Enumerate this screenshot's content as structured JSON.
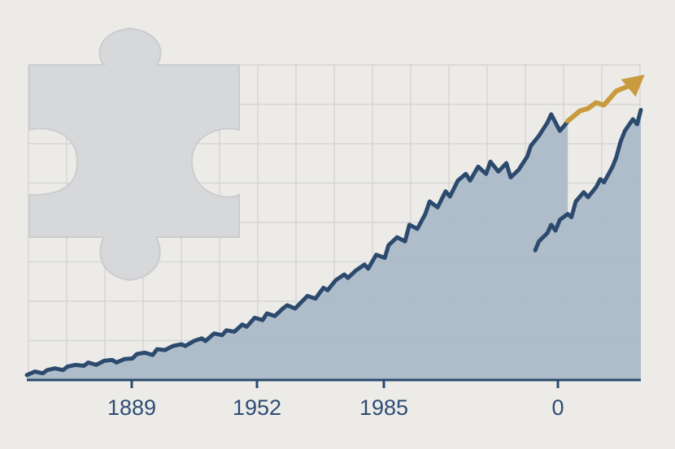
{
  "colors": {
    "background": "#ecebe8",
    "grid": "#d6d6d6",
    "area_fill": "#a9b8c8",
    "line": "#2c4a6e",
    "arrow": "#c99a3e",
    "axis": "#2c4a6e",
    "puzzle": "#d7d8da",
    "tick_text": "#2f4c74"
  },
  "icons": {
    "decoration": "puzzle-piece-icon",
    "trend": "up-arrow-icon"
  },
  "chart_data": {
    "type": "area",
    "title": "",
    "xlabel": "",
    "ylabel": "",
    "grid": true,
    "legend": "none",
    "x_ticks": [
      "1889",
      "1952",
      "1985",
      "0"
    ],
    "xlim": [
      0,
      100
    ],
    "ylim": [
      0,
      100
    ],
    "series": [
      {
        "x": [
          0,
          1.3,
          2.6,
          3.3,
          4.6,
          5.9,
          6.6,
          7.9,
          9.3,
          10,
          11.3,
          12.6,
          13.9,
          14.6,
          15.9,
          17.2,
          17.9,
          19.2,
          20.5,
          21.2,
          22.5,
          23.8,
          25.2,
          25.8,
          27.2,
          28.5,
          29.1,
          30.5,
          31.8,
          32.5,
          33.8,
          35.1,
          35.8,
          37.1,
          38.4,
          39.1,
          40.4,
          41.7,
          42.4,
          43.7,
          45,
          45.7,
          47,
          48.3,
          49,
          50.3,
          51.7,
          52.3,
          53.6,
          55,
          55.6,
          56.9,
          58.3,
          58.9,
          60.3,
          61.6,
          62.3,
          63.6,
          64.9,
          65.6,
          66.9,
          68.2,
          68.9,
          70.2,
          71.5,
          72.2,
          73.5,
          74.8,
          75.5,
          76.8,
          78.1,
          78.8,
          80.1,
          81.5,
          82.1,
          83.4,
          84.8,
          85.4,
          86.8,
          88.1
        ],
        "y": [
          1.7,
          2.9,
          2.3,
          3.4,
          4,
          3.4,
          4.6,
          5.2,
          4.9,
          6,
          5.2,
          6.6,
          6.9,
          6,
          7.2,
          7.4,
          8.9,
          9.4,
          8.6,
          10.6,
          10.3,
          11.7,
          12.3,
          11.7,
          13.4,
          14.3,
          13.4,
          16,
          15.4,
          17.1,
          16.6,
          19.1,
          18.3,
          21.4,
          20.6,
          22.9,
          22,
          24.6,
          25.7,
          24.6,
          27.4,
          28.9,
          28,
          31.7,
          30.9,
          34.3,
          36.3,
          35.1,
          37.7,
          39.7,
          38.3,
          43.1,
          42,
          46.3,
          49.1,
          47.7,
          53.4,
          52,
          57.1,
          61.4,
          59.4,
          64.9,
          63.1,
          68.6,
          70.9,
          68.6,
          73.4,
          70.9,
          75.1,
          71.7,
          74.6,
          69.7,
          72.3,
          76.9,
          80.6,
          84,
          88.6,
          91.4,
          85.7,
          88.9
        ]
      },
      {
        "x": [
          82.8,
          83.4,
          84.8,
          85.4,
          86.1,
          86.8,
          88.1,
          88.7,
          89.4,
          90.7,
          91.4,
          92.7,
          93.4,
          94,
          95.4,
          96,
          96.7,
          97.4,
          98.7,
          99.4,
          100
        ],
        "y": [
          44.6,
          47.7,
          50.6,
          53.4,
          51.4,
          55.1,
          57.1,
          56,
          61.4,
          64.6,
          62.9,
          66.3,
          69.1,
          68,
          73.4,
          76.6,
          82,
          85.7,
          89.7,
          88,
          92.9
        ]
      }
    ],
    "arrow": {
      "x": [
        88.1,
        90.1,
        91.4,
        92.7,
        94,
        96,
        98.7,
        100
      ],
      "y": [
        89.1,
        92.6,
        93.4,
        95.4,
        94.6,
        99.4,
        101.7,
        104
      ]
    }
  }
}
